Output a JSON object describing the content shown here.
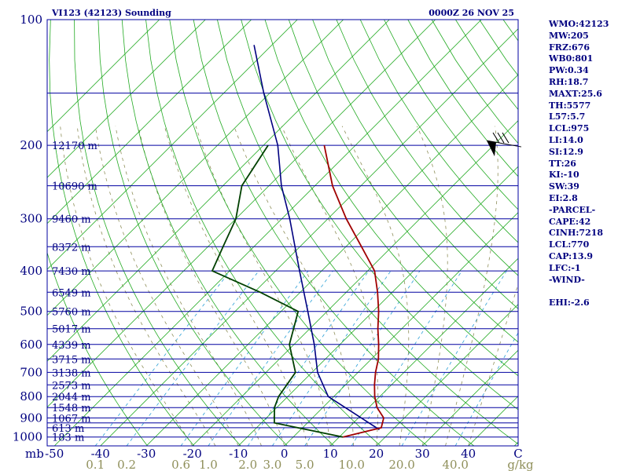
{
  "header": {
    "station": "VI123 (42123) Sounding",
    "time": "0000Z 26 NOV 25"
  },
  "colors": {
    "frame": "#0000a0",
    "isobar": "#0000a0",
    "isotherm": "#22aa22",
    "dry_adiabat": "#22aa22",
    "moist_adiabat": "#8f8f5a",
    "mixing_ratio": "#2a9fd6",
    "temperature": "#a00000",
    "dewpoint": "#004000",
    "parcel": "#000080",
    "text": "#000080",
    "mixing_label": "#8f8f5a"
  },
  "chart_data": {
    "type": "skew-t",
    "pressure_axis": {
      "unit_label": "mb",
      "ticks": [
        100,
        200,
        300,
        400,
        500,
        600,
        700,
        800,
        900,
        1000
      ],
      "range": [
        100,
        1050
      ],
      "scale": "log"
    },
    "temperature_axis": {
      "ticks": [
        "-50",
        "-40",
        "-30",
        "-20",
        "-10",
        "0",
        "10",
        "20",
        "30",
        "40",
        "C"
      ]
    },
    "mixing_ratio_axis": {
      "unit_label": "g/kg",
      "labels": [
        "0.1",
        "0.2",
        "0.6",
        "1.0",
        "2.0",
        "3.0",
        "5.0",
        "10.0",
        "20.0",
        "40.0"
      ]
    },
    "isobars": [
      150,
      200,
      250,
      300,
      350,
      400,
      450,
      500,
      550,
      600,
      650,
      700,
      750,
      800,
      850,
      900,
      925,
      950,
      1000
    ],
    "heights": [
      {
        "p": 200,
        "label": "12170 m"
      },
      {
        "p": 250,
        "label": "10690 m"
      },
      {
        "p": 300,
        "label": "9460 m"
      },
      {
        "p": 350,
        "label": "8372 m"
      },
      {
        "p": 400,
        "label": "7430 m"
      },
      {
        "p": 450,
        "label": "6549 m"
      },
      {
        "p": 500,
        "label": "5760 m"
      },
      {
        "p": 550,
        "label": "5017 m"
      },
      {
        "p": 600,
        "label": "4339 m"
      },
      {
        "p": 650,
        "label": "3715 m"
      },
      {
        "p": 700,
        "label": "3138 m"
      },
      {
        "p": 750,
        "label": "2573 m"
      },
      {
        "p": 800,
        "label": "2044 m"
      },
      {
        "p": 850,
        "label": "1548 m"
      },
      {
        "p": 900,
        "label": "1067 m"
      },
      {
        "p": 950,
        "label": "613 m"
      },
      {
        "p": 1000,
        "label": "183 m"
      }
    ],
    "temperature": [
      [
        1000,
        10.8
      ],
      [
        950,
        17.1
      ],
      [
        900,
        15.5
      ],
      [
        850,
        11.8
      ],
      [
        800,
        8.9
      ],
      [
        750,
        6.3
      ],
      [
        700,
        3.8
      ],
      [
        650,
        1.5
      ],
      [
        600,
        -1.6
      ],
      [
        550,
        -5.2
      ],
      [
        500,
        -8.8
      ],
      [
        450,
        -13.2
      ],
      [
        400,
        -18.5
      ],
      [
        350,
        -26.6
      ],
      [
        300,
        -36.0
      ],
      [
        250,
        -46.2
      ],
      [
        200,
        -56.8
      ]
    ],
    "dewpoint": [
      [
        1000,
        10.8
      ],
      [
        925,
        -7.2
      ],
      [
        850,
        -10.5
      ],
      [
        800,
        -12.0
      ],
      [
        700,
        -13.6
      ],
      [
        600,
        -21.0
      ],
      [
        500,
        -26.3
      ],
      [
        450,
        -38.7
      ],
      [
        400,
        -53.8
      ],
      [
        350,
        -56.7
      ],
      [
        300,
        -60.0
      ],
      [
        250,
        -65.9
      ],
      [
        200,
        -69.0
      ]
    ],
    "parcel": [
      [
        960,
        17.1
      ],
      [
        800,
        -1.2
      ],
      [
        700,
        -8.8
      ],
      [
        600,
        -15.6
      ],
      [
        500,
        -24.2
      ],
      [
        400,
        -34.8
      ],
      [
        300,
        -48.3
      ],
      [
        250,
        -57.3
      ],
      [
        200,
        -66.9
      ],
      [
        150,
        -81.3
      ],
      [
        115,
        -93.9
      ]
    ],
    "wind_barb": {
      "p": 200,
      "direction_deg": 280,
      "speed_kt": 65
    }
  },
  "indices": [
    "WMO:42123",
    "MW:205",
    "FRZ:676",
    "WB0:801",
    "PW:0.34",
    "RH:18.7",
    "MAXT:25.6",
    "TH:5577",
    "L57:5.7",
    "LCL:975",
    "LI:14.0",
    "SI:12.9",
    "TT:26",
    "KI:-10",
    "SW:39",
    "EI:2.8",
    "-PARCEL-",
    "CAPE:42",
    "CINH:7218",
    "LCL:770",
    "CAP:13.9",
    "LFC:-1",
    "-WIND-",
    "",
    "EHI:-2.6"
  ]
}
